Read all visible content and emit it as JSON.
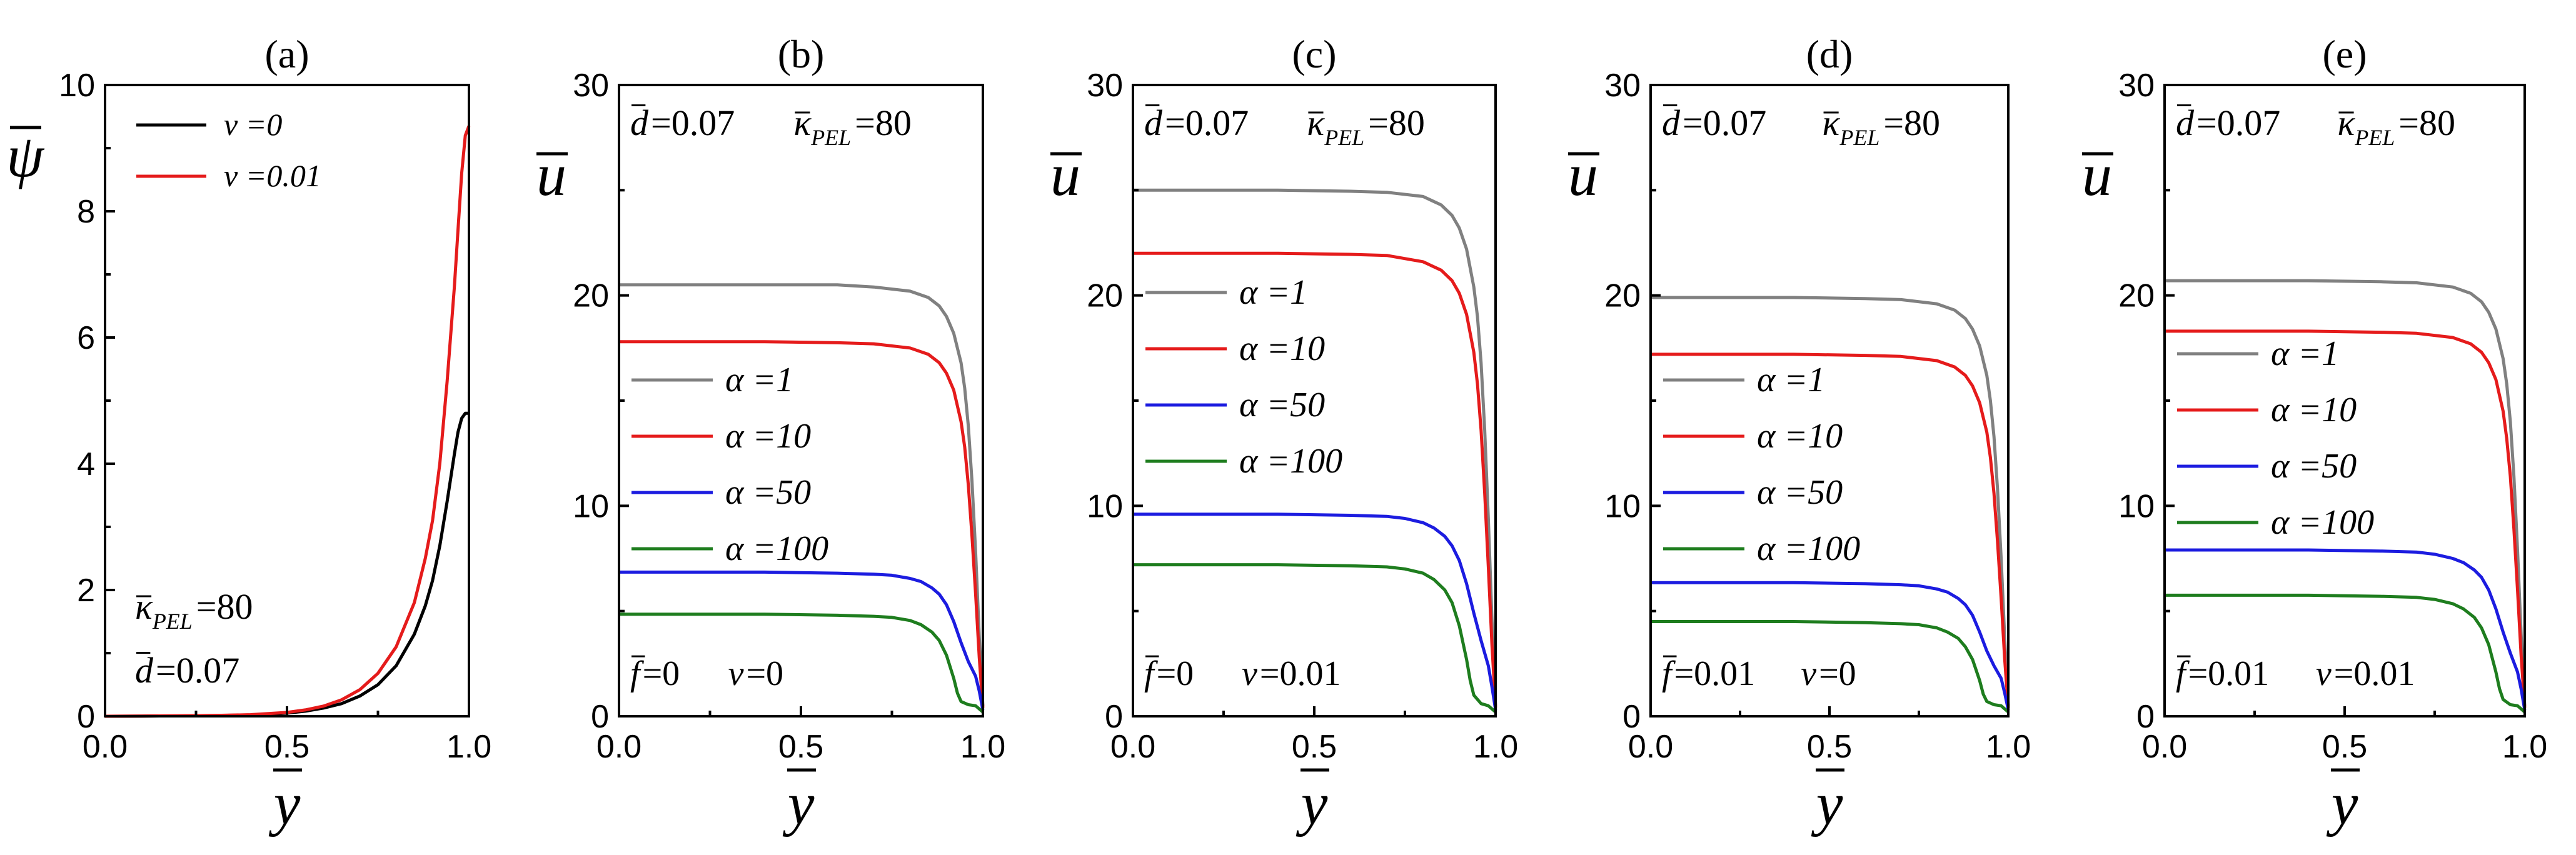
{
  "chart_data": [
    {
      "panel": "(a)",
      "type": "line",
      "ylabel": "ψ",
      "xlabel": "y",
      "xlim": [
        0,
        1
      ],
      "ylim": [
        0,
        10
      ],
      "xticks": [
        "0.0",
        "0.5",
        "1.0"
      ],
      "yticks": [
        "0",
        "2",
        "4",
        "6",
        "8",
        "10"
      ],
      "legend": {
        "position": "top-left",
        "entries": [
          "ν =0",
          "ν =0.01"
        ]
      },
      "annotations": [
        {
          "sym": "κ",
          "sub": "PEL",
          "val": "=80",
          "position": "lower-left"
        },
        {
          "sym": "d",
          "val": "=0.07",
          "position": "bottom-left"
        }
      ],
      "series": [
        {
          "name": "ν =0",
          "color": "#000000",
          "x": [
            0,
            0.1,
            0.2,
            0.3,
            0.4,
            0.5,
            0.55,
            0.6,
            0.65,
            0.7,
            0.75,
            0.8,
            0.85,
            0.88,
            0.9,
            0.92,
            0.94,
            0.96,
            0.97,
            0.98,
            0.99,
            1.0
          ],
          "y": [
            0.0,
            0.003,
            0.006,
            0.012,
            0.02,
            0.05,
            0.08,
            0.13,
            0.2,
            0.32,
            0.5,
            0.8,
            1.3,
            1.75,
            2.15,
            2.7,
            3.4,
            4.15,
            4.5,
            4.72,
            4.8,
            4.8
          ]
        },
        {
          "name": "ν =0.01",
          "color": "#e51b1b",
          "x": [
            0,
            0.1,
            0.2,
            0.3,
            0.4,
            0.5,
            0.55,
            0.6,
            0.65,
            0.7,
            0.75,
            0.8,
            0.85,
            0.88,
            0.9,
            0.92,
            0.94,
            0.96,
            0.97,
            0.98,
            0.99,
            1.0
          ],
          "y": [
            0.0,
            0.003,
            0.006,
            0.012,
            0.025,
            0.06,
            0.1,
            0.16,
            0.26,
            0.42,
            0.68,
            1.1,
            1.8,
            2.5,
            3.1,
            4.0,
            5.3,
            6.8,
            7.7,
            8.6,
            9.2,
            9.35
          ]
        }
      ]
    },
    {
      "panel": "(b)",
      "type": "line",
      "ylabel": "u",
      "xlabel": "y",
      "xlim": [
        0,
        1
      ],
      "ylim": [
        0,
        30
      ],
      "xticks": [
        "0.0",
        "0.5",
        "1.0"
      ],
      "yticks": [
        "0",
        "10",
        "20",
        "30"
      ],
      "top_annotations": [
        {
          "sym": "d",
          "val": "=0.07"
        },
        {
          "sym": "κ",
          "sub": "PEL",
          "val": "=80"
        }
      ],
      "bottom_annotations": [
        {
          "sym": "f",
          "val": "=0"
        },
        {
          "sym": "ν",
          "val": "=0"
        }
      ],
      "legend": {
        "position": "center-left",
        "entries": [
          "α =1",
          "α =10",
          "α =50",
          "α =100"
        ]
      },
      "series": [
        {
          "name": "α =1",
          "color": "#808080",
          "x": [
            0,
            0.2,
            0.4,
            0.6,
            0.7,
            0.8,
            0.85,
            0.88,
            0.9,
            0.92,
            0.94,
            0.95,
            0.96,
            0.97,
            0.98,
            0.99,
            1.0
          ],
          "y": [
            20.5,
            20.5,
            20.5,
            20.5,
            20.4,
            20.2,
            19.9,
            19.5,
            19.0,
            18.2,
            16.8,
            15.6,
            13.8,
            11.2,
            7.8,
            3.8,
            0.5
          ]
        },
        {
          "name": "α =10",
          "color": "#e51b1b",
          "x": [
            0,
            0.2,
            0.4,
            0.6,
            0.7,
            0.8,
            0.85,
            0.88,
            0.9,
            0.92,
            0.94,
            0.95,
            0.96,
            0.97,
            0.98,
            0.99,
            1.0
          ],
          "y": [
            17.8,
            17.8,
            17.8,
            17.75,
            17.7,
            17.5,
            17.2,
            16.8,
            16.3,
            15.5,
            14.0,
            12.8,
            11.0,
            8.6,
            5.8,
            2.8,
            0.4
          ]
        },
        {
          "name": "α =50",
          "color": "#1c1ce0",
          "x": [
            0,
            0.2,
            0.4,
            0.6,
            0.7,
            0.75,
            0.8,
            0.83,
            0.86,
            0.88,
            0.9,
            0.92,
            0.94,
            0.96,
            0.98,
            0.99,
            1.0
          ],
          "y": [
            6.85,
            6.85,
            6.85,
            6.8,
            6.75,
            6.7,
            6.55,
            6.4,
            6.1,
            5.8,
            5.3,
            4.5,
            3.5,
            2.6,
            1.9,
            1.2,
            0.3
          ]
        },
        {
          "name": "α =100",
          "color": "#1e7d1e",
          "x": [
            0,
            0.2,
            0.4,
            0.6,
            0.7,
            0.75,
            0.8,
            0.83,
            0.86,
            0.88,
            0.9,
            0.92,
            0.93,
            0.94,
            0.96,
            0.98,
            1.0
          ],
          "y": [
            4.85,
            4.85,
            4.85,
            4.8,
            4.75,
            4.7,
            4.55,
            4.35,
            4.0,
            3.6,
            2.9,
            1.8,
            1.1,
            0.7,
            0.55,
            0.5,
            0.2
          ]
        }
      ]
    },
    {
      "panel": "(c)",
      "type": "line",
      "ylabel": "u",
      "xlabel": "y",
      "xlim": [
        0,
        1
      ],
      "ylim": [
        0,
        30
      ],
      "xticks": [
        "0.0",
        "0.5",
        "1.0"
      ],
      "yticks": [
        "0",
        "10",
        "20",
        "30"
      ],
      "top_annotations": [
        {
          "sym": "d",
          "val": "=0.07"
        },
        {
          "sym": "κ",
          "sub": "PEL",
          "val": "=80"
        }
      ],
      "bottom_annotations": [
        {
          "sym": "f",
          "val": "=0"
        },
        {
          "sym": "ν",
          "val": "=0.01"
        }
      ],
      "legend": {
        "position": "center-left",
        "entries": [
          "α =1",
          "α =10",
          "α =50",
          "α =100"
        ]
      },
      "series": [
        {
          "name": "α =1",
          "color": "#808080",
          "x": [
            0,
            0.2,
            0.4,
            0.6,
            0.7,
            0.8,
            0.85,
            0.88,
            0.9,
            0.92,
            0.94,
            0.95,
            0.96,
            0.97,
            0.98,
            0.99,
            1.0
          ],
          "y": [
            25.0,
            25.0,
            25.0,
            24.95,
            24.9,
            24.7,
            24.3,
            23.8,
            23.2,
            22.2,
            20.4,
            19.0,
            16.8,
            13.6,
            9.4,
            4.6,
            0.5
          ]
        },
        {
          "name": "α =10",
          "color": "#e51b1b",
          "x": [
            0,
            0.2,
            0.4,
            0.6,
            0.7,
            0.8,
            0.85,
            0.88,
            0.9,
            0.92,
            0.94,
            0.95,
            0.96,
            0.97,
            0.98,
            0.99,
            1.0
          ],
          "y": [
            22.0,
            22.0,
            22.0,
            21.95,
            21.9,
            21.6,
            21.2,
            20.7,
            20.1,
            19.1,
            17.3,
            15.8,
            13.6,
            10.6,
            7.1,
            3.4,
            0.4
          ]
        },
        {
          "name": "α =50",
          "color": "#1c1ce0",
          "x": [
            0,
            0.2,
            0.4,
            0.6,
            0.7,
            0.75,
            0.8,
            0.83,
            0.86,
            0.88,
            0.9,
            0.92,
            0.94,
            0.96,
            0.98,
            0.99,
            1.0
          ],
          "y": [
            9.6,
            9.6,
            9.6,
            9.55,
            9.5,
            9.4,
            9.2,
            8.95,
            8.55,
            8.1,
            7.4,
            6.3,
            4.9,
            3.6,
            2.4,
            1.4,
            0.3
          ]
        },
        {
          "name": "α =100",
          "color": "#1e7d1e",
          "x": [
            0,
            0.2,
            0.4,
            0.6,
            0.7,
            0.75,
            0.8,
            0.83,
            0.86,
            0.88,
            0.9,
            0.92,
            0.93,
            0.94,
            0.96,
            0.98,
            1.0
          ],
          "y": [
            7.2,
            7.2,
            7.2,
            7.15,
            7.1,
            7.0,
            6.8,
            6.5,
            6.0,
            5.4,
            4.3,
            2.7,
            1.7,
            1.0,
            0.6,
            0.5,
            0.2
          ]
        }
      ]
    },
    {
      "panel": "(d)",
      "type": "line",
      "ylabel": "u",
      "xlabel": "y",
      "xlim": [
        0,
        1
      ],
      "ylim": [
        0,
        30
      ],
      "xticks": [
        "0.0",
        "0.5",
        "1.0"
      ],
      "yticks": [
        "0",
        "10",
        "20",
        "30"
      ],
      "top_annotations": [
        {
          "sym": "d",
          "val": "=0.07"
        },
        {
          "sym": "κ",
          "sub": "PEL",
          "val": "=80"
        }
      ],
      "bottom_annotations": [
        {
          "sym": "f",
          "val": "=0.01"
        },
        {
          "sym": "ν",
          "val": "=0"
        }
      ],
      "legend": {
        "position": "center-left",
        "entries": [
          "α =1",
          "α =10",
          "α =50",
          "α =100"
        ]
      },
      "series": [
        {
          "name": "α =1",
          "color": "#808080",
          "x": [
            0,
            0.2,
            0.4,
            0.6,
            0.7,
            0.8,
            0.85,
            0.88,
            0.9,
            0.92,
            0.94,
            0.95,
            0.96,
            0.97,
            0.98,
            0.99,
            1.0
          ],
          "y": [
            19.9,
            19.9,
            19.9,
            19.85,
            19.8,
            19.6,
            19.3,
            18.9,
            18.4,
            17.6,
            16.2,
            15.0,
            13.3,
            10.8,
            7.5,
            3.7,
            0.5
          ]
        },
        {
          "name": "α =10",
          "color": "#e51b1b",
          "x": [
            0,
            0.2,
            0.4,
            0.6,
            0.7,
            0.8,
            0.85,
            0.88,
            0.9,
            0.92,
            0.94,
            0.95,
            0.96,
            0.97,
            0.98,
            0.99,
            1.0
          ],
          "y": [
            17.2,
            17.2,
            17.2,
            17.15,
            17.1,
            16.9,
            16.6,
            16.2,
            15.7,
            14.9,
            13.5,
            12.3,
            10.6,
            8.3,
            5.6,
            2.7,
            0.4
          ]
        },
        {
          "name": "α =50",
          "color": "#1c1ce0",
          "x": [
            0,
            0.2,
            0.4,
            0.6,
            0.7,
            0.75,
            0.8,
            0.83,
            0.86,
            0.88,
            0.9,
            0.92,
            0.94,
            0.96,
            0.98,
            0.99,
            1.0
          ],
          "y": [
            6.35,
            6.35,
            6.35,
            6.3,
            6.25,
            6.2,
            6.05,
            5.9,
            5.6,
            5.3,
            4.8,
            4.0,
            3.1,
            2.4,
            1.8,
            1.1,
            0.3
          ]
        },
        {
          "name": "α =100",
          "color": "#1e7d1e",
          "x": [
            0,
            0.2,
            0.4,
            0.6,
            0.7,
            0.75,
            0.8,
            0.83,
            0.86,
            0.88,
            0.9,
            0.92,
            0.93,
            0.94,
            0.96,
            0.98,
            1.0
          ],
          "y": [
            4.5,
            4.5,
            4.5,
            4.45,
            4.4,
            4.35,
            4.2,
            4.0,
            3.7,
            3.3,
            2.7,
            1.7,
            1.05,
            0.7,
            0.55,
            0.5,
            0.2
          ]
        }
      ]
    },
    {
      "panel": "(e)",
      "type": "line",
      "ylabel": "u",
      "xlabel": "y",
      "xlim": [
        0,
        1
      ],
      "ylim": [
        0,
        30
      ],
      "xticks": [
        "0.0",
        "0.5",
        "1.0"
      ],
      "yticks": [
        "0",
        "10",
        "20",
        "30"
      ],
      "top_annotations": [
        {
          "sym": "d",
          "val": "=0.07"
        },
        {
          "sym": "κ",
          "sub": "PEL",
          "val": "=80"
        }
      ],
      "bottom_annotations": [
        {
          "sym": "f",
          "val": "=0.01"
        },
        {
          "sym": "ν",
          "val": "=0.01"
        }
      ],
      "legend": {
        "position": "center-left",
        "entries": [
          "α =1",
          "α =10",
          "α =50",
          "α =100"
        ]
      },
      "series": [
        {
          "name": "α =1",
          "color": "#808080",
          "x": [
            0,
            0.2,
            0.4,
            0.6,
            0.7,
            0.8,
            0.85,
            0.88,
            0.9,
            0.92,
            0.94,
            0.95,
            0.96,
            0.97,
            0.98,
            0.99,
            1.0
          ],
          "y": [
            20.7,
            20.7,
            20.7,
            20.65,
            20.6,
            20.4,
            20.1,
            19.7,
            19.2,
            18.4,
            17.0,
            15.8,
            14.0,
            11.4,
            7.9,
            3.9,
            0.5
          ]
        },
        {
          "name": "α =10",
          "color": "#e51b1b",
          "x": [
            0,
            0.2,
            0.4,
            0.6,
            0.7,
            0.8,
            0.85,
            0.88,
            0.9,
            0.92,
            0.94,
            0.95,
            0.96,
            0.97,
            0.98,
            0.99,
            1.0
          ],
          "y": [
            18.3,
            18.3,
            18.3,
            18.25,
            18.2,
            18.0,
            17.7,
            17.3,
            16.8,
            16.0,
            14.5,
            13.2,
            11.4,
            8.9,
            6.0,
            2.9,
            0.4
          ]
        },
        {
          "name": "α =50",
          "color": "#1c1ce0",
          "x": [
            0,
            0.2,
            0.4,
            0.6,
            0.7,
            0.75,
            0.8,
            0.83,
            0.86,
            0.88,
            0.9,
            0.92,
            0.94,
            0.96,
            0.98,
            0.99,
            1.0
          ],
          "y": [
            7.9,
            7.9,
            7.9,
            7.85,
            7.8,
            7.7,
            7.5,
            7.3,
            6.95,
            6.6,
            6.0,
            5.1,
            4.0,
            3.0,
            2.1,
            1.3,
            0.3
          ]
        },
        {
          "name": "α =100",
          "color": "#1e7d1e",
          "x": [
            0,
            0.2,
            0.4,
            0.6,
            0.7,
            0.75,
            0.8,
            0.83,
            0.86,
            0.88,
            0.9,
            0.92,
            0.93,
            0.94,
            0.96,
            0.98,
            1.0
          ],
          "y": [
            5.75,
            5.75,
            5.75,
            5.7,
            5.65,
            5.55,
            5.35,
            5.1,
            4.7,
            4.2,
            3.4,
            2.1,
            1.3,
            0.8,
            0.55,
            0.5,
            0.2
          ]
        }
      ]
    }
  ]
}
